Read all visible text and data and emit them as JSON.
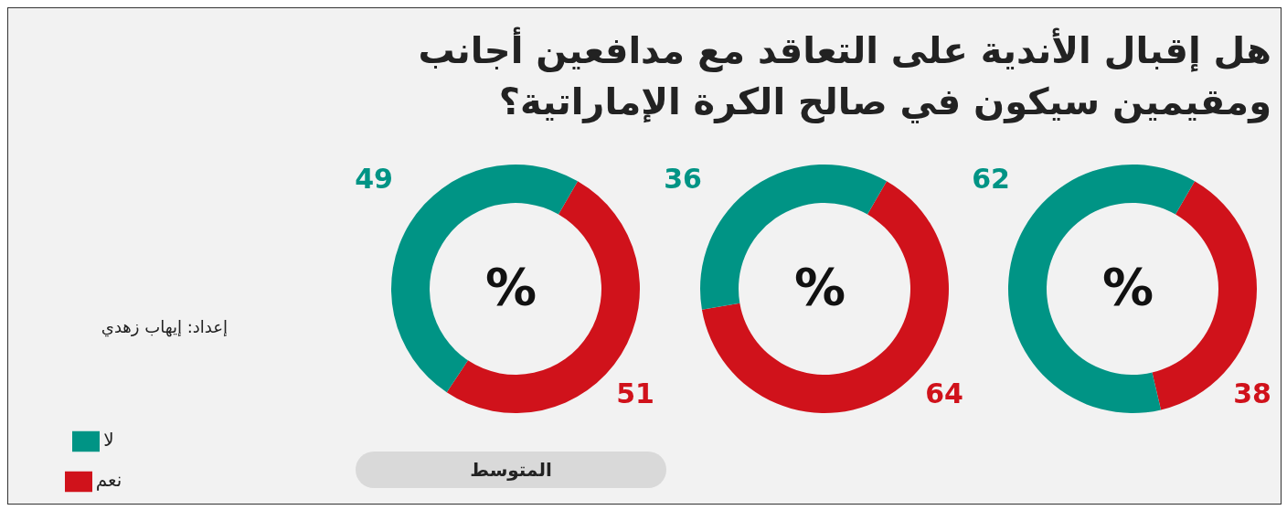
{
  "chart_data": [
    {
      "type": "other",
      "title": "هل إقبال الأندية على التعاقد مع مدافعين أجانب ومقيمين سيكون في صالح الكرة الإماراتية؟",
      "annotations": [
        "إعداد: إيهاب زهدي"
      ]
    },
    {
      "type": "donut",
      "categories": [
        null,
        null
      ],
      "values": [
        38,
        62
      ],
      "colors": [
        "#d0121b",
        "#009485"
      ],
      "data_labels": true,
      "annotations": [
        "%"
      ]
    },
    {
      "type": "donut",
      "categories": [
        null,
        null
      ],
      "values": [
        64,
        36
      ],
      "colors": [
        "#d0121b",
        "#009485"
      ],
      "data_labels": true,
      "annotations": [
        "%"
      ]
    },
    {
      "type": "donut",
      "title": "المتوسط",
      "categories": [
        "نعم",
        "لا"
      ],
      "values": [
        51,
        49
      ],
      "colors": [
        "#d0121b",
        "#009485"
      ],
      "data_labels": true,
      "annotations": [
        "%"
      ],
      "legend": "bottom left"
    }
  ]
}
